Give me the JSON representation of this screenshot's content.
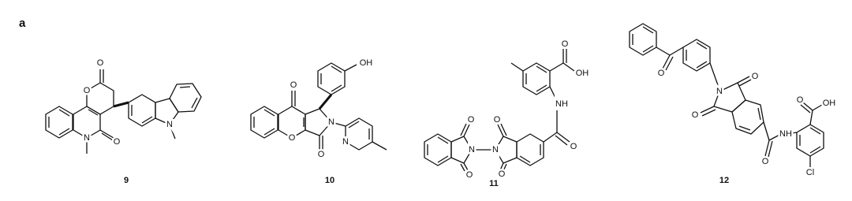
{
  "panel_label": "a",
  "compounds": [
    {
      "number": "9",
      "atoms": [
        "O",
        "O",
        "N",
        "O",
        "N"
      ]
    },
    {
      "number": "10",
      "atoms": [
        "O",
        "OH",
        "O",
        "N",
        "O",
        "N"
      ]
    },
    {
      "number": "11",
      "atoms": [
        "OH",
        "O",
        "NH",
        "O",
        "O",
        "O",
        "N",
        "N",
        "O",
        "O"
      ]
    },
    {
      "number": "12",
      "atoms": [
        "O",
        "N",
        "O",
        "O",
        "NH",
        "O",
        "OH",
        "O",
        "Cl"
      ]
    }
  ]
}
